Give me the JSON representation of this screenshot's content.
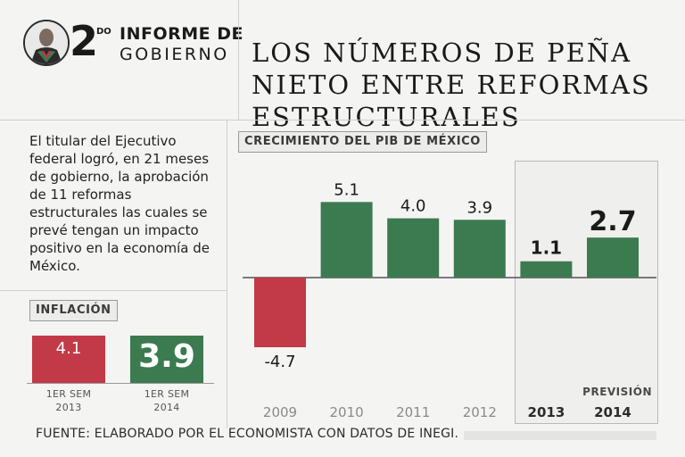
{
  "header": {
    "logo_number": "2",
    "logo_superscript": "DO",
    "logo_line1": "INFORME DE",
    "logo_line2": "GOBIERNO",
    "headline": "LOS NÚMEROS DE PEÑA\nNIETO ENTRE REFORMAS\nESTRUCTURALES"
  },
  "intro_text": "El titular del Ejecutivo federal logró, en 21 meses de gobierno, la aprobación de 11 reformas estructurales las cuales se prevé tengan un impacto positivo en la economía de México.",
  "colors": {
    "red": "#c23a47",
    "green": "#3c7a50",
    "bg": "#f4f4f2"
  },
  "inflation": {
    "label": "INFLACIÓN",
    "items": [
      {
        "value": "4.1",
        "caption_line1": "1ER SEM",
        "caption_line2": "2013",
        "color": "#c23a47",
        "emphasis": false
      },
      {
        "value": "3.9",
        "caption_line1": "1ER SEM",
        "caption_line2": "2014",
        "color": "#3c7a50",
        "emphasis": true
      }
    ]
  },
  "chart_data": {
    "type": "bar",
    "title": "CRECIMIENTO DEL PIB DE MÉXICO",
    "categories": [
      "2009",
      "2010",
      "2011",
      "2012",
      "2013",
      "2014"
    ],
    "values": [
      -4.7,
      5.1,
      4.0,
      3.9,
      1.1,
      2.7
    ],
    "value_labels": [
      "-4.7",
      "5.1",
      "4.0",
      "3.9",
      "1.1",
      "2.7"
    ],
    "forecast_label": "PREVISIÓN",
    "highlight_categories": [
      "2013",
      "2014"
    ],
    "ylim": [
      -4.7,
      5.1
    ],
    "xlabel": "",
    "ylabel": ""
  },
  "source": "FUENTE: ELABORADO POR EL ECONOMISTA CON DATOS DE INEGI."
}
